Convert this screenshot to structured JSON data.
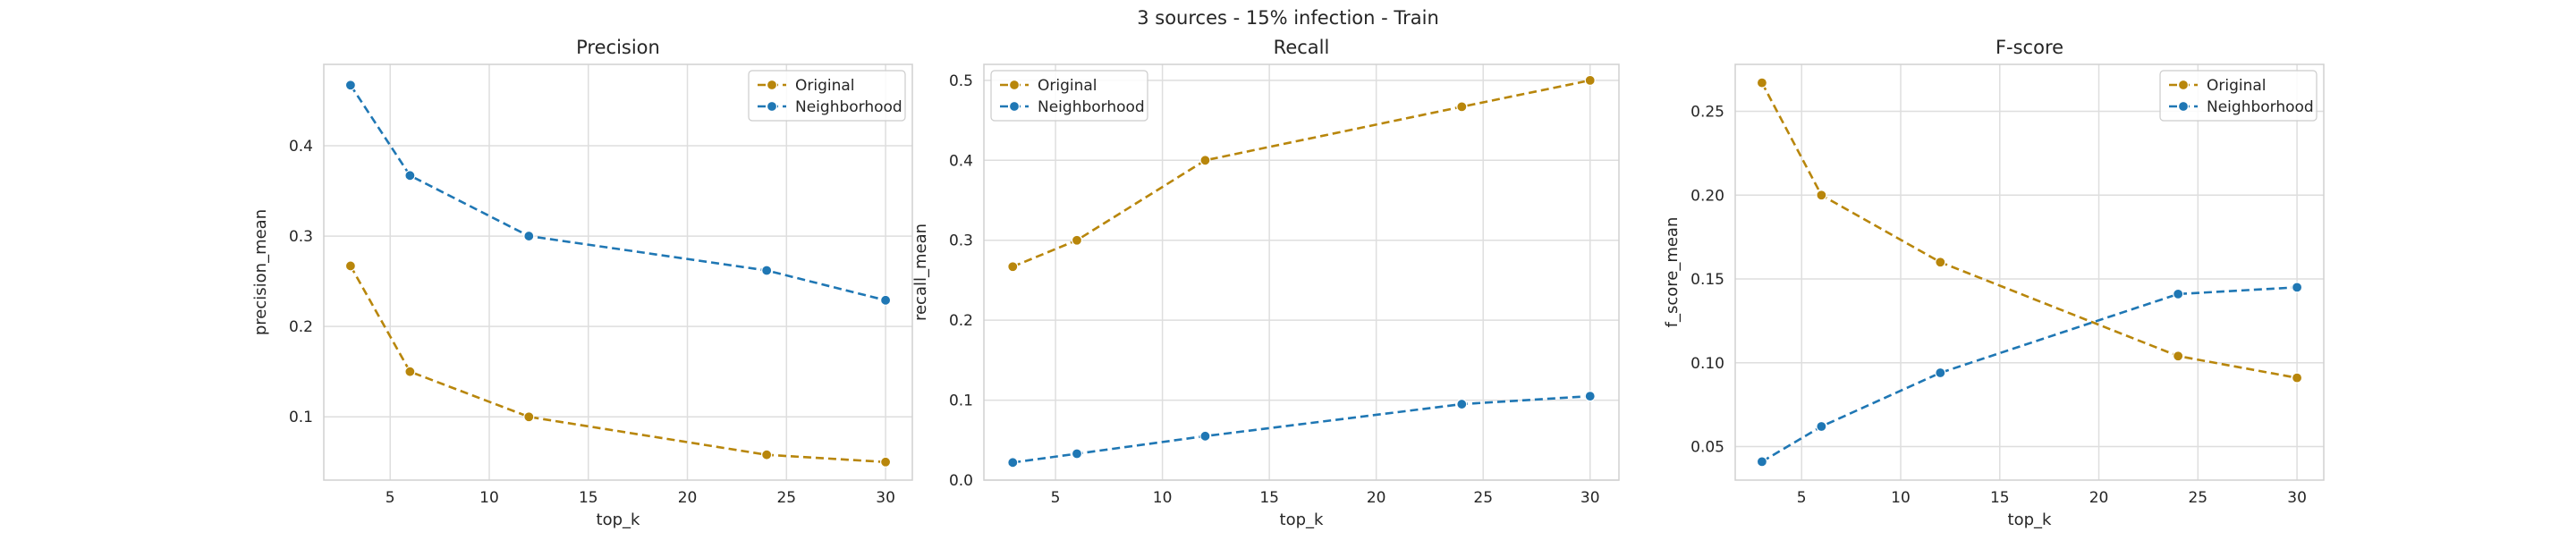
{
  "figure": {
    "suptitle": "3 sources - 15% infection - Train"
  },
  "chart_data": [
    {
      "type": "line",
      "title": "Precision",
      "xlabel": "top_k",
      "ylabel": "precision_mean",
      "grid": true,
      "legend_position": "top-right",
      "xlim": [
        1.65,
        31.35
      ],
      "ylim": [
        0.03,
        0.49
      ],
      "x_ticks": [
        5,
        10,
        15,
        20,
        25,
        30
      ],
      "y_ticks": [
        0.1,
        0.2,
        0.3,
        0.4
      ],
      "x_tick_labels": [
        "5",
        "10",
        "15",
        "20",
        "25",
        "30"
      ],
      "y_tick_labels": [
        "0.1",
        "0.2",
        "0.3",
        "0.4"
      ],
      "x": [
        3,
        6,
        12,
        24,
        30
      ],
      "series": [
        {
          "name": "Original",
          "color": "#b8860b",
          "values": [
            0.267,
            0.15,
            0.1,
            0.058,
            0.05
          ]
        },
        {
          "name": "Neighborhood",
          "color": "#1f77b4",
          "values": [
            0.467,
            0.367,
            0.3,
            0.262,
            0.229
          ]
        }
      ]
    },
    {
      "type": "line",
      "title": "Recall",
      "xlabel": "top_k",
      "ylabel": "recall_mean",
      "grid": true,
      "legend_position": "top-left",
      "xlim": [
        1.65,
        31.35
      ],
      "ylim": [
        0.0,
        0.52
      ],
      "x_ticks": [
        5,
        10,
        15,
        20,
        25,
        30
      ],
      "y_ticks": [
        0.0,
        0.1,
        0.2,
        0.3,
        0.4,
        0.5
      ],
      "x_tick_labels": [
        "5",
        "10",
        "15",
        "20",
        "25",
        "30"
      ],
      "y_tick_labels": [
        "0.0",
        "0.1",
        "0.2",
        "0.3",
        "0.4",
        "0.5"
      ],
      "x": [
        3,
        6,
        12,
        24,
        30
      ],
      "series": [
        {
          "name": "Original",
          "color": "#b8860b",
          "values": [
            0.267,
            0.3,
            0.4,
            0.467,
            0.5
          ]
        },
        {
          "name": "Neighborhood",
          "color": "#1f77b4",
          "values": [
            0.022,
            0.033,
            0.055,
            0.095,
            0.105
          ]
        }
      ]
    },
    {
      "type": "line",
      "title": "F-score",
      "xlabel": "top_k",
      "ylabel": "f_score_mean",
      "grid": true,
      "legend_position": "top-right",
      "xlim": [
        1.65,
        31.35
      ],
      "ylim": [
        0.03,
        0.278
      ],
      "x_ticks": [
        5,
        10,
        15,
        20,
        25,
        30
      ],
      "y_ticks": [
        0.05,
        0.1,
        0.15,
        0.2,
        0.25
      ],
      "x_tick_labels": [
        "5",
        "10",
        "15",
        "20",
        "25",
        "30"
      ],
      "y_tick_labels": [
        "0.05",
        "0.10",
        "0.15",
        "0.20",
        "0.25"
      ],
      "x": [
        3,
        6,
        12,
        24,
        30
      ],
      "series": [
        {
          "name": "Original",
          "color": "#b8860b",
          "values": [
            0.267,
            0.2,
            0.16,
            0.104,
            0.091
          ]
        },
        {
          "name": "Neighborhood",
          "color": "#1f77b4",
          "values": [
            0.041,
            0.062,
            0.094,
            0.141,
            0.145
          ]
        }
      ]
    }
  ]
}
